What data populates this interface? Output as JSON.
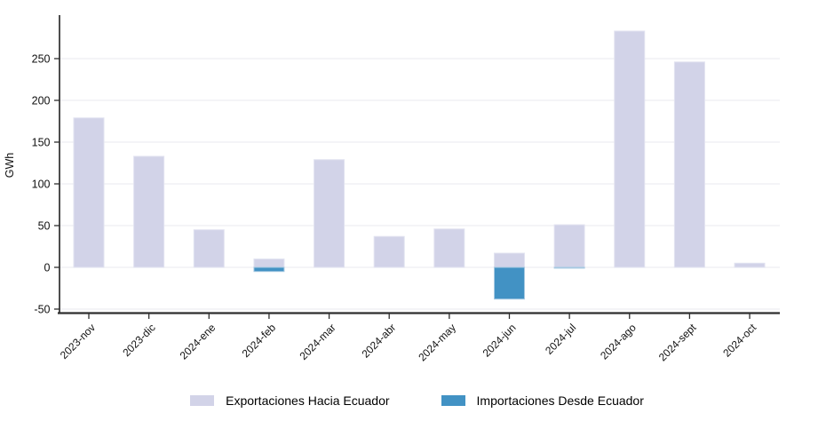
{
  "chart_data": {
    "type": "bar",
    "title": "",
    "ylabel": "GWh",
    "xlabel": "",
    "categories": [
      "2023-nov",
      "2023-dic",
      "2024-ene",
      "2024-feb",
      "2024-mar",
      "2024-abr",
      "2024-may",
      "2024-jun",
      "2024-jul",
      "2024-ago",
      "2024-sept",
      "2024-oct"
    ],
    "series": [
      {
        "name": "Exportaciones Hacia Ecuador",
        "color": "#d2d3e8",
        "border_color": "#e2e3f1",
        "values": [
          179,
          133,
          45,
          10,
          129,
          37,
          46,
          17,
          51,
          283,
          246,
          5
        ]
      },
      {
        "name": "Importaciones Desde Ecuador",
        "color": "#4292c4",
        "border_color": "#a6c9e2",
        "values": [
          0,
          0,
          0,
          -5,
          0,
          0,
          0,
          -38,
          -1,
          0,
          0,
          0
        ]
      }
    ],
    "y_ticks": [
      -50,
      0,
      50,
      100,
      150,
      200,
      250
    ],
    "ylim": [
      -54,
      302
    ],
    "grid": true,
    "gridline_color": "#ededf2",
    "axis_color": "#2e2e2e",
    "text_color": "#111111",
    "legend_position": "bottom"
  }
}
